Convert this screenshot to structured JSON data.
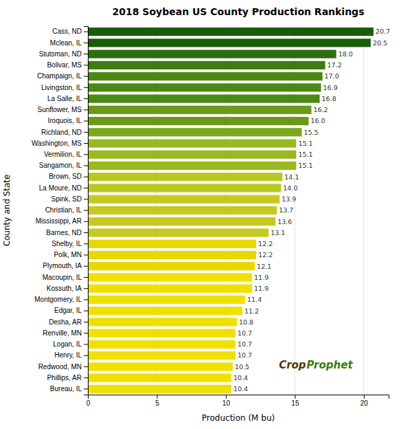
{
  "chart_data": {
    "type": "bar",
    "orientation": "horizontal",
    "title": "2018 Soybean US County Production Rankings",
    "x_label": "Production (M bu)",
    "y_label": "County and State",
    "categories": [
      "Cass, ND",
      "Mclean, IL",
      "Stutsman, ND",
      "Bolivar, MS",
      "Champaign, IL",
      "Livingston, IL",
      "La Salle, IL",
      "Sunflower, MS",
      "Iroquois, IL",
      "Richland, ND",
      "Washington, MS",
      "Vermilion, IL",
      "Sangamon, IL",
      "Brown, SD",
      "La Moure, ND",
      "Spink, SD",
      "Christian, IL",
      "Mississippi, AR",
      "Barnes, ND",
      "Shelby, IL",
      "Polk, MN",
      "Plymouth, IA",
      "Macoupin, IL",
      "Kossuth, IA",
      "Montgomery, IL",
      "Edgar, IL",
      "Desha, AR",
      "Renville, MN",
      "Logan, IL",
      "Henry, IL",
      "Redwood, MN",
      "Phillips, AR",
      "Bureau, IL"
    ],
    "values": [
      20.7,
      20.5,
      18.0,
      17.2,
      17.0,
      16.9,
      16.8,
      16.2,
      16.0,
      15.5,
      15.1,
      15.1,
      15.1,
      14.1,
      14.0,
      13.9,
      13.7,
      13.6,
      13.1,
      12.2,
      12.2,
      12.1,
      11.9,
      11.9,
      11.4,
      11.2,
      10.8,
      10.7,
      10.7,
      10.7,
      10.5,
      10.4,
      10.4
    ],
    "value_labels": [
      "20.7",
      "20.5",
      "18.0",
      "17.2",
      "17.0",
      "16.9",
      "16.8",
      "16.2",
      "16.0",
      "15.5",
      "15.1",
      "15.1",
      "15.1",
      "14.1",
      "14.0",
      "13.9",
      "13.7",
      "13.6",
      "13.1",
      "12.2",
      "12.2",
      "12.1",
      "11.9",
      "11.9",
      "11.4",
      "11.2",
      "10.8",
      "10.7",
      "10.7",
      "10.7",
      "10.5",
      "10.4",
      "10.4"
    ],
    "colors": [
      "#1a5c0e",
      "#1a5c0e",
      "#2d6e10",
      "#3d7a12",
      "#4a8a14",
      "#4a8a14",
      "#4a8a14",
      "#6a9a18",
      "#6a9a18",
      "#7aaa1c",
      "#9ab820",
      "#9ab820",
      "#9ab820",
      "#b8c820",
      "#b8c820",
      "#c8c820",
      "#c8c820",
      "#c8c820",
      "#c8c820",
      "#e8d800",
      "#e8d800",
      "#e8d800",
      "#f0e000",
      "#f0e000",
      "#f0e000",
      "#f0e000",
      "#f0e000",
      "#f0e000",
      "#f0e000",
      "#f0e000",
      "#f0e000",
      "#f0e000",
      "#f0e000"
    ],
    "xlim": [
      0,
      21.8
    ],
    "xticks": [
      0,
      5,
      10,
      15,
      20
    ],
    "grid": true,
    "data_labels": true,
    "annotations": [
      {
        "text": "Crop",
        "color": "#5a3500"
      },
      {
        "text": "Prophet",
        "color": "#3a7a10"
      }
    ]
  }
}
